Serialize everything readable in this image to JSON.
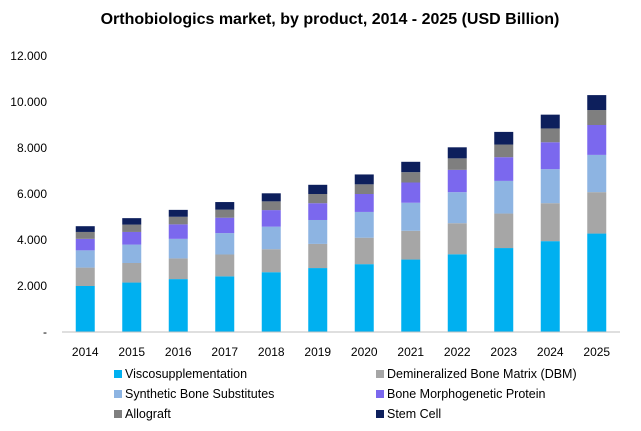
{
  "chart_data": {
    "type": "bar",
    "stacked": true,
    "title": "Orthobiologics market, by product, 2014 - 2025 (USD Billion)",
    "xlabel": "",
    "ylabel": "",
    "categories": [
      "2014",
      "2015",
      "2016",
      "2017",
      "2018",
      "2019",
      "2020",
      "2021",
      "2022",
      "2023",
      "2024",
      "2025"
    ],
    "y_ticks": [
      {
        "value": 0,
        "label": "-"
      },
      {
        "value": 2,
        "label": "2.000"
      },
      {
        "value": 4,
        "label": "4.000"
      },
      {
        "value": 6,
        "label": "6.000"
      },
      {
        "value": 8,
        "label": "8.000"
      },
      {
        "value": 10,
        "label": "10.000"
      },
      {
        "value": 12,
        "label": "12.000"
      }
    ],
    "ylim": [
      0,
      12
    ],
    "grid": false,
    "legend_position": "bottom",
    "series": [
      {
        "name": "Viscosupplementation",
        "color": "#00b0f0",
        "values": [
          2.0,
          2.15,
          2.3,
          2.42,
          2.6,
          2.78,
          2.95,
          3.15,
          3.38,
          3.65,
          3.95,
          4.28
        ]
      },
      {
        "name": "Demineralized Bone Matrix (DBM)",
        "color": "#a6a6a6",
        "values": [
          0.8,
          0.85,
          0.9,
          0.95,
          1.0,
          1.05,
          1.15,
          1.25,
          1.35,
          1.5,
          1.65,
          1.8
        ]
      },
      {
        "name": "Synthetic Bone Substitutes",
        "color": "#8db4e2",
        "values": [
          0.75,
          0.8,
          0.85,
          0.93,
          0.98,
          1.04,
          1.12,
          1.22,
          1.35,
          1.42,
          1.48,
          1.62
        ]
      },
      {
        "name": "Bone Morphogenetic Protein",
        "color": "#7b68ee",
        "values": [
          0.5,
          0.55,
          0.63,
          0.67,
          0.72,
          0.73,
          0.78,
          0.88,
          0.97,
          1.03,
          1.17,
          1.3
        ]
      },
      {
        "name": "Allograft",
        "color": "#7f7f7f",
        "values": [
          0.3,
          0.32,
          0.33,
          0.35,
          0.38,
          0.4,
          0.42,
          0.45,
          0.5,
          0.55,
          0.6,
          0.65
        ]
      },
      {
        "name": "Stem Cell",
        "color": "#0d1f5c",
        "values": [
          0.25,
          0.28,
          0.3,
          0.33,
          0.35,
          0.4,
          0.43,
          0.45,
          0.48,
          0.55,
          0.6,
          0.65
        ]
      }
    ]
  }
}
